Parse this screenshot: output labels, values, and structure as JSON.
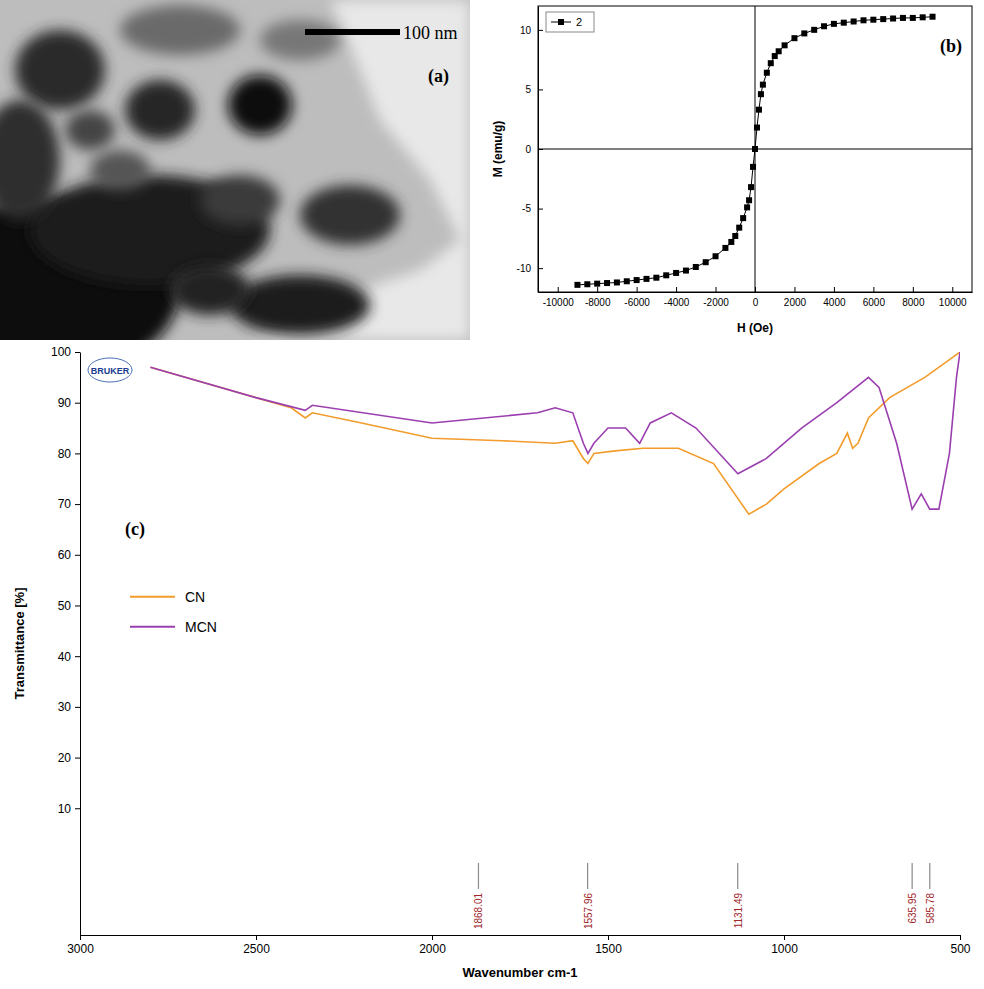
{
  "chart_data": [
    {
      "type": "image",
      "panel_label": "(a)",
      "scale_bar": "100 nm"
    },
    {
      "type": "line",
      "panel_label": "(b)",
      "x_label": "H (Oe)",
      "y_label": "M (emu/g)",
      "xlim": [
        -11000,
        11000
      ],
      "ylim": [
        -12,
        12
      ],
      "xticks": [
        -10000,
        -8000,
        -6000,
        -4000,
        -2000,
        0,
        2000,
        4000,
        6000,
        8000,
        10000
      ],
      "yticks": [
        -10,
        -5,
        0,
        5,
        10
      ],
      "legend": "top-left",
      "series": [
        {
          "name": "2",
          "color": "#000000",
          "marker": "square",
          "x": [
            -9000,
            -8500,
            -8000,
            -7500,
            -7000,
            -6500,
            -6000,
            -5500,
            -5000,
            -4500,
            -4000,
            -3500,
            -3000,
            -2500,
            -2000,
            -1500,
            -1200,
            -1000,
            -800,
            -600,
            -400,
            -300,
            -200,
            -100,
            0,
            100,
            200,
            300,
            400,
            600,
            800,
            1000,
            1200,
            1500,
            2000,
            2500,
            3000,
            3500,
            4000,
            4500,
            5000,
            5500,
            6000,
            6500,
            7000,
            7500,
            8000,
            8500,
            9000
          ],
          "values": [
            -11.4,
            -11.35,
            -11.3,
            -11.25,
            -11.2,
            -11.1,
            -11,
            -10.9,
            -10.8,
            -10.6,
            -10.4,
            -10.2,
            -9.9,
            -9.5,
            -9,
            -8.3,
            -7.8,
            -7.3,
            -6.6,
            -5.8,
            -4.9,
            -4.3,
            -3.2,
            -1.5,
            0,
            1.8,
            3.3,
            4.6,
            5.4,
            6.4,
            7.2,
            7.8,
            8.2,
            8.7,
            9.3,
            9.7,
            10,
            10.3,
            10.5,
            10.6,
            10.7,
            10.8,
            10.85,
            10.9,
            10.95,
            11,
            11,
            11.05,
            11.1
          ]
        }
      ]
    },
    {
      "type": "line",
      "panel_label": "(c)",
      "logo": "BRUKER",
      "x_label": "Wavenumber cm-1",
      "y_label": "Transmittance [%]",
      "xlim": [
        3000,
        500
      ],
      "ylim": [
        -15,
        100
      ],
      "xticks": [
        3000,
        2500,
        2000,
        1500,
        1000,
        500
      ],
      "yticks": [
        10,
        20,
        30,
        40,
        50,
        60,
        70,
        80,
        90,
        100
      ],
      "legend": "left",
      "peaks": [
        1868.01,
        1557.96,
        1131.49,
        635.95,
        585.78
      ],
      "series": [
        {
          "name": "CN",
          "color": "#f39c2c",
          "x": [
            2800,
            2600,
            2400,
            2360,
            2340,
            2200,
            2000,
            1800,
            1650,
            1600,
            1570,
            1557,
            1540,
            1480,
            1400,
            1300,
            1200,
            1100,
            1050,
            1000,
            900,
            850,
            820,
            805,
            790,
            760,
            700,
            600,
            520,
            500
          ],
          "values": [
            97,
            93,
            89,
            87,
            88,
            86,
            83,
            82.5,
            82,
            82.5,
            79,
            78,
            80,
            80.5,
            81,
            81,
            78,
            68,
            70,
            73,
            78,
            80,
            84,
            81,
            82,
            87,
            91,
            95,
            99,
            100
          ]
        },
        {
          "name": "MCN",
          "color": "#9b3fb0",
          "x": [
            2800,
            2500,
            2360,
            2340,
            2000,
            1700,
            1650,
            1600,
            1570,
            1557,
            1540,
            1500,
            1450,
            1410,
            1380,
            1320,
            1250,
            1131,
            1050,
            950,
            850,
            760,
            730,
            680,
            636,
            610,
            586,
            560,
            530,
            510,
            500
          ],
          "values": [
            97,
            91,
            88.5,
            89.5,
            86,
            88,
            89,
            88,
            82,
            80,
            82,
            85,
            85,
            82,
            86,
            88,
            85,
            76,
            79,
            85,
            90,
            95,
            93,
            82,
            69,
            72,
            69,
            69,
            80,
            95,
            100
          ]
        }
      ]
    }
  ]
}
